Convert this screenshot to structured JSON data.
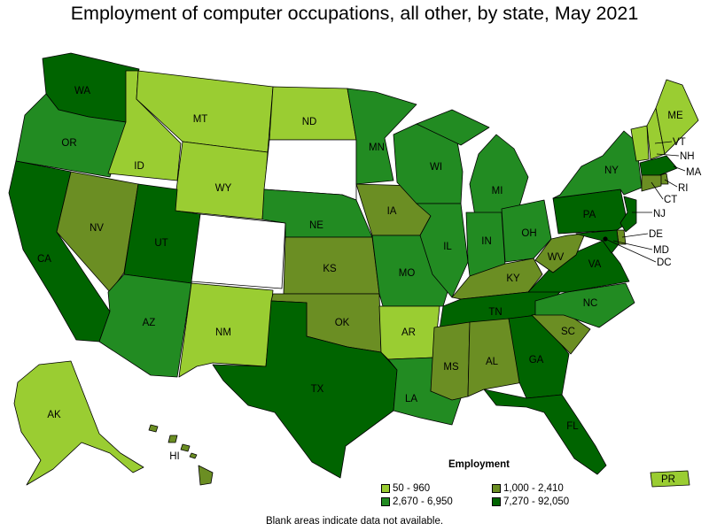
{
  "title": "Employment of computer occupations, all other, by state, May 2021",
  "legend": {
    "title": "Employment",
    "bins": [
      {
        "label": "50 - 960",
        "color": "#9acd32"
      },
      {
        "label": "1,000 - 2,410",
        "color": "#6b8e23"
      },
      {
        "label": "2,670 - 6,950",
        "color": "#228b22"
      },
      {
        "label": "7,270 - 92,050",
        "color": "#006400"
      }
    ]
  },
  "nodata_color": "#ffffff",
  "footnote": "Blank areas indicate data not available.",
  "states": [
    {
      "abbr": "WA",
      "bin": 3
    },
    {
      "abbr": "OR",
      "bin": 2
    },
    {
      "abbr": "CA",
      "bin": 3
    },
    {
      "abbr": "NV",
      "bin": 1
    },
    {
      "abbr": "ID",
      "bin": 0
    },
    {
      "abbr": "MT",
      "bin": 0
    },
    {
      "abbr": "WY",
      "bin": 0
    },
    {
      "abbr": "UT",
      "bin": 3
    },
    {
      "abbr": "AZ",
      "bin": 2
    },
    {
      "abbr": "CO",
      "bin": null
    },
    {
      "abbr": "NM",
      "bin": 0
    },
    {
      "abbr": "ND",
      "bin": 0
    },
    {
      "abbr": "SD",
      "bin": null
    },
    {
      "abbr": "NE",
      "bin": 2
    },
    {
      "abbr": "KS",
      "bin": 1
    },
    {
      "abbr": "OK",
      "bin": 1
    },
    {
      "abbr": "TX",
      "bin": 3
    },
    {
      "abbr": "MN",
      "bin": 2
    },
    {
      "abbr": "IA",
      "bin": 1
    },
    {
      "abbr": "MO",
      "bin": 2
    },
    {
      "abbr": "AR",
      "bin": 0
    },
    {
      "abbr": "LA",
      "bin": 2
    },
    {
      "abbr": "WI",
      "bin": 2
    },
    {
      "abbr": "IL",
      "bin": 2
    },
    {
      "abbr": "MI",
      "bin": 2
    },
    {
      "abbr": "IN",
      "bin": 2
    },
    {
      "abbr": "OH",
      "bin": 2
    },
    {
      "abbr": "KY",
      "bin": 1
    },
    {
      "abbr": "TN",
      "bin": 3
    },
    {
      "abbr": "MS",
      "bin": 1
    },
    {
      "abbr": "AL",
      "bin": 1
    },
    {
      "abbr": "GA",
      "bin": 3
    },
    {
      "abbr": "FL",
      "bin": 3
    },
    {
      "abbr": "SC",
      "bin": 1
    },
    {
      "abbr": "NC",
      "bin": 2
    },
    {
      "abbr": "VA",
      "bin": 3
    },
    {
      "abbr": "WV",
      "bin": 1
    },
    {
      "abbr": "PA",
      "bin": 3
    },
    {
      "abbr": "NY",
      "bin": 2
    },
    {
      "abbr": "VT",
      "bin": 0
    },
    {
      "abbr": "NH",
      "bin": 0
    },
    {
      "abbr": "ME",
      "bin": 0
    },
    {
      "abbr": "MA",
      "bin": 3
    },
    {
      "abbr": "RI",
      "bin": 1
    },
    {
      "abbr": "CT",
      "bin": 1
    },
    {
      "abbr": "NJ",
      "bin": 3
    },
    {
      "abbr": "DE",
      "bin": 1
    },
    {
      "abbr": "MD",
      "bin": 3
    },
    {
      "abbr": "DC",
      "bin": 3
    },
    {
      "abbr": "AK",
      "bin": 0
    },
    {
      "abbr": "HI",
      "bin": 1
    },
    {
      "abbr": "PR",
      "bin": 0
    }
  ]
}
